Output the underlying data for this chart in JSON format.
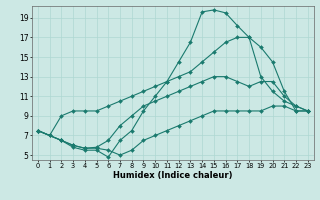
{
  "xlabel": "Humidex (Indice chaleur)",
  "bg_color": "#cce8e4",
  "line_color": "#1a7a6e",
  "grid_color": "#aed8d2",
  "xlim": [
    -0.5,
    23.5
  ],
  "ylim": [
    4.5,
    20.2
  ],
  "yticks": [
    5,
    7,
    9,
    11,
    13,
    15,
    17,
    19
  ],
  "xticks": [
    0,
    1,
    2,
    3,
    4,
    5,
    6,
    7,
    8,
    9,
    10,
    11,
    12,
    13,
    14,
    15,
    16,
    17,
    18,
    19,
    20,
    21,
    22,
    23
  ],
  "line1_x": [
    0,
    1,
    2,
    3,
    4,
    5,
    6,
    7,
    8,
    9,
    10,
    11,
    12,
    13,
    14,
    15,
    16,
    17,
    18,
    19,
    20,
    21,
    22,
    23
  ],
  "line1_y": [
    7.5,
    7.0,
    9.0,
    9.5,
    9.5,
    9.5,
    10.0,
    10.5,
    11.0,
    11.5,
    12.0,
    12.5,
    13.0,
    13.5,
    14.5,
    15.5,
    16.5,
    17.0,
    17.0,
    13.0,
    11.5,
    10.5,
    10.0,
    9.5
  ],
  "line2_x": [
    0,
    2,
    3,
    4,
    5,
    6,
    7,
    8,
    9,
    10,
    11,
    12,
    13,
    14,
    15,
    16,
    17,
    18,
    19,
    20,
    21,
    22,
    23
  ],
  "line2_y": [
    7.5,
    6.5,
    6.0,
    5.7,
    5.8,
    6.5,
    8.0,
    9.0,
    10.0,
    10.5,
    11.0,
    11.5,
    12.0,
    12.5,
    13.0,
    13.0,
    12.5,
    12.0,
    12.5,
    12.5,
    11.0,
    10.0,
    9.5
  ],
  "line3_x": [
    0,
    1,
    2,
    3,
    4,
    5,
    6,
    7,
    8,
    9,
    10,
    11,
    12,
    13,
    14,
    15,
    16,
    17,
    18,
    19,
    20,
    21,
    22,
    23
  ],
  "line3_y": [
    7.5,
    7.0,
    6.5,
    5.8,
    5.5,
    5.5,
    4.8,
    6.5,
    7.5,
    9.5,
    11.0,
    12.5,
    14.5,
    16.5,
    19.6,
    19.8,
    19.5,
    18.2,
    17.0,
    16.0,
    14.5,
    11.5,
    9.5,
    9.5
  ],
  "line4_x": [
    0,
    2,
    3,
    4,
    5,
    6,
    7,
    8,
    9,
    10,
    11,
    12,
    13,
    14,
    15,
    16,
    17,
    18,
    19,
    20,
    21,
    22,
    23
  ],
  "line4_y": [
    7.5,
    6.5,
    6.0,
    5.7,
    5.7,
    5.5,
    5.0,
    5.5,
    6.5,
    7.0,
    7.5,
    8.0,
    8.5,
    9.0,
    9.5,
    9.5,
    9.5,
    9.5,
    9.5,
    10.0,
    10.0,
    9.5,
    9.5
  ]
}
